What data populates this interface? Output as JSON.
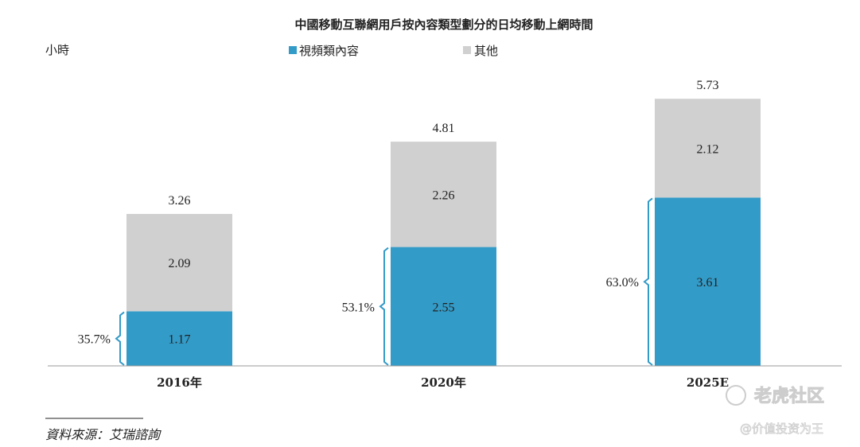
{
  "chart_data": {
    "type": "bar",
    "stacked": true,
    "title": "中國移動互聯網用戶按內容類型劃分的日均移動上網時間",
    "ylabel": "小時",
    "categories": [
      "2016年",
      "2020年",
      "2025E"
    ],
    "series": [
      {
        "name": "視頻類內容",
        "color": "#339bc8",
        "values": [
          1.17,
          2.55,
          3.61
        ]
      },
      {
        "name": "其他",
        "color": "#d0d0d0",
        "values": [
          2.09,
          2.26,
          2.12
        ]
      }
    ],
    "totals": [
      "3.26",
      "4.81",
      "5.73"
    ],
    "video_value_labels": [
      "1.17",
      "2.55",
      "3.61"
    ],
    "other_value_labels": [
      "2.09",
      "2.26",
      "2.12"
    ],
    "share_labels": [
      "35.7%",
      "53.1%",
      "63.0%"
    ],
    "ylim": [
      0,
      6
    ],
    "legend_position": "top-center",
    "grid": false,
    "source": "資料來源：艾瑞諮詢"
  },
  "watermark": {
    "brand": "老虎社区",
    "handle": "@价值投资为王"
  },
  "colors": {
    "bracket": "#339bc8",
    "axis": "#999999"
  }
}
